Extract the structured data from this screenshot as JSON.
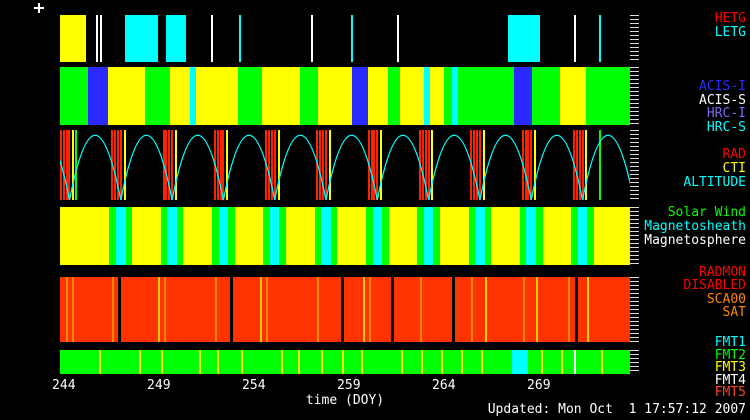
{
  "updated": "Updated: Mon Oct  1 17:57:12 2007",
  "colors": {
    "background": "#000000",
    "yellow": "#ffff00",
    "green": "#00ff00",
    "cyan": "#00ffff",
    "blue": "#2a2aff",
    "red": "#ff2200",
    "orange": "#ff8800",
    "white": "#ffffff"
  },
  "chart_data": {
    "type": "timeline",
    "xlabel": "time (DOY)",
    "x_range": [
      243.8,
      273.8
    ],
    "x_ticks": [
      {
        "day": 244,
        "label": "244"
      },
      {
        "day": 249,
        "label": "249"
      },
      {
        "day": 254,
        "label": "254"
      },
      {
        "day": 259,
        "label": "259"
      },
      {
        "day": 264,
        "label": "264"
      },
      {
        "day": 269,
        "label": "269"
      }
    ],
    "bands": [
      {
        "id": "grating",
        "bg": "#000000",
        "labels": [
          {
            "text": "HETG",
            "color": "#ff0000"
          },
          {
            "text": "LETG",
            "color": "#00ffff"
          }
        ],
        "segments": [
          {
            "s": 243.8,
            "e": 245.15,
            "c": "#ffff00"
          },
          {
            "s": 247.2,
            "e": 248.96,
            "c": "#00ffff"
          },
          {
            "s": 249.38,
            "e": 250.43,
            "c": "#00ffff"
          },
          {
            "s": 267.4,
            "e": 269.05,
            "c": "#00ffff"
          }
        ],
        "lines": [
          {
            "d": 245.75,
            "c": "#ffffff"
          },
          {
            "d": 245.97,
            "c": "#ffffff"
          },
          {
            "d": 251.8,
            "c": "#ffffff"
          },
          {
            "d": 253.27,
            "c": "#00ffff"
          },
          {
            "d": 257.06,
            "c": "#ffffff"
          },
          {
            "d": 259.17,
            "c": "#00ffff"
          },
          {
            "d": 261.59,
            "c": "#ffffff"
          },
          {
            "d": 270.9,
            "c": "#ffffff"
          },
          {
            "d": 272.2,
            "c": "#00ffff"
          }
        ]
      },
      {
        "id": "instruments",
        "bg": "#000000",
        "labels": [
          {
            "text": "ACIS-I",
            "color": "#2a2aff"
          },
          {
            "text": "ACIS-S",
            "color": "#ffffff"
          },
          {
            "text": "HRC-I",
            "color": "#7b68ee"
          },
          {
            "text": "HRC-S",
            "color": "#00ffff"
          }
        ],
        "segments": [
          {
            "s": 243.8,
            "e": 245.27,
            "c": "#00ff00"
          },
          {
            "s": 245.27,
            "e": 246.33,
            "c": "#2a2aff"
          },
          {
            "s": 246.33,
            "e": 248.27,
            "c": "#ffff00"
          },
          {
            "s": 248.27,
            "e": 249.59,
            "c": "#00ff00"
          },
          {
            "s": 249.59,
            "e": 250.64,
            "c": "#ffff00"
          },
          {
            "s": 250.64,
            "e": 250.96,
            "c": "#00ffff"
          },
          {
            "s": 250.96,
            "e": 253.17,
            "c": "#ffff00"
          },
          {
            "s": 253.17,
            "e": 254.43,
            "c": "#00ff00"
          },
          {
            "s": 254.43,
            "e": 256.43,
            "c": "#ffff00"
          },
          {
            "s": 256.43,
            "e": 257.38,
            "c": "#00ff00"
          },
          {
            "s": 257.38,
            "e": 259.17,
            "c": "#ffff00"
          },
          {
            "s": 259.17,
            "e": 260.01,
            "c": "#2a2aff"
          },
          {
            "s": 260.01,
            "e": 261.06,
            "c": "#ffff00"
          },
          {
            "s": 261.06,
            "e": 261.7,
            "c": "#00ff00"
          },
          {
            "s": 261.7,
            "e": 262.96,
            "c": "#ffff00"
          },
          {
            "s": 262.96,
            "e": 263.27,
            "c": "#00ffff"
          },
          {
            "s": 263.27,
            "e": 264.01,
            "c": "#ffff00"
          },
          {
            "s": 264.01,
            "e": 264.43,
            "c": "#00ff00"
          },
          {
            "s": 264.43,
            "e": 264.75,
            "c": "#00ffff"
          },
          {
            "s": 264.75,
            "e": 267.7,
            "c": "#00ff00"
          },
          {
            "s": 267.7,
            "e": 268.64,
            "c": "#2a2aff"
          },
          {
            "s": 268.64,
            "e": 270.1,
            "c": "#00ff00"
          },
          {
            "s": 270.1,
            "e": 271.5,
            "c": "#ffff00"
          },
          {
            "s": 271.5,
            "e": 273.8,
            "c": "#00ff00"
          }
        ],
        "lines": []
      },
      {
        "id": "orbit",
        "bg": "#000000",
        "labels": [
          {
            "text": "RAD",
            "color": "#ff0000"
          },
          {
            "text": "CTI",
            "color": "#ffff00"
          },
          {
            "text": "ALTITUDE",
            "color": "#00ffff"
          }
        ],
        "perigees": [
          244.3,
          247.0,
          249.7,
          252.4,
          255.1,
          257.8,
          260.5,
          263.2,
          265.9,
          268.6,
          271.3
        ],
        "segments": [],
        "lines": [
          {
            "d": 243.85,
            "c": "#ff2200"
          },
          {
            "d": 244.0,
            "c": "#ff2200"
          },
          {
            "d": 244.15,
            "c": "#ff2200"
          },
          {
            "d": 244.3,
            "c": "#ff2200"
          },
          {
            "d": 246.55,
            "c": "#ff2200"
          },
          {
            "d": 246.7,
            "c": "#ff2200"
          },
          {
            "d": 246.85,
            "c": "#ff2200"
          },
          {
            "d": 247.0,
            "c": "#ff2200"
          },
          {
            "d": 249.25,
            "c": "#ff2200"
          },
          {
            "d": 249.4,
            "c": "#ff2200"
          },
          {
            "d": 249.55,
            "c": "#ff2200"
          },
          {
            "d": 249.7,
            "c": "#ff2200"
          },
          {
            "d": 251.95,
            "c": "#ff2200"
          },
          {
            "d": 252.1,
            "c": "#ff2200"
          },
          {
            "d": 252.25,
            "c": "#ff2200"
          },
          {
            "d": 252.4,
            "c": "#ff2200"
          },
          {
            "d": 254.65,
            "c": "#ff2200"
          },
          {
            "d": 254.8,
            "c": "#ff2200"
          },
          {
            "d": 254.95,
            "c": "#ff2200"
          },
          {
            "d": 255.1,
            "c": "#ff2200"
          },
          {
            "d": 257.35,
            "c": "#ff2200"
          },
          {
            "d": 257.5,
            "c": "#ff2200"
          },
          {
            "d": 257.65,
            "c": "#ff2200"
          },
          {
            "d": 257.8,
            "c": "#ff2200"
          },
          {
            "d": 260.05,
            "c": "#ff2200"
          },
          {
            "d": 260.2,
            "c": "#ff2200"
          },
          {
            "d": 260.35,
            "c": "#ff2200"
          },
          {
            "d": 260.5,
            "c": "#ff2200"
          },
          {
            "d": 262.75,
            "c": "#ff2200"
          },
          {
            "d": 262.9,
            "c": "#ff2200"
          },
          {
            "d": 263.05,
            "c": "#ff2200"
          },
          {
            "d": 263.2,
            "c": "#ff2200"
          },
          {
            "d": 265.45,
            "c": "#ff2200"
          },
          {
            "d": 265.6,
            "c": "#ff2200"
          },
          {
            "d": 265.75,
            "c": "#ff2200"
          },
          {
            "d": 265.9,
            "c": "#ff2200"
          },
          {
            "d": 268.15,
            "c": "#ff2200"
          },
          {
            "d": 268.3,
            "c": "#ff2200"
          },
          {
            "d": 268.45,
            "c": "#ff2200"
          },
          {
            "d": 268.6,
            "c": "#ff2200"
          },
          {
            "d": 270.85,
            "c": "#ff2200"
          },
          {
            "d": 271.0,
            "c": "#ff2200"
          },
          {
            "d": 271.15,
            "c": "#ff2200"
          },
          {
            "d": 271.3,
            "c": "#ff2200"
          },
          {
            "d": 244.5,
            "c": "#ffff00"
          },
          {
            "d": 247.2,
            "c": "#ffff00"
          },
          {
            "d": 249.9,
            "c": "#ffff00"
          },
          {
            "d": 252.6,
            "c": "#ffff00"
          },
          {
            "d": 255.3,
            "c": "#ffff00"
          },
          {
            "d": 258.0,
            "c": "#ffff00"
          },
          {
            "d": 260.7,
            "c": "#ffff00"
          },
          {
            "d": 263.4,
            "c": "#ffff00"
          },
          {
            "d": 266.1,
            "c": "#ffff00"
          },
          {
            "d": 268.8,
            "c": "#ffff00"
          },
          {
            "d": 271.5,
            "c": "#ffff00"
          },
          {
            "d": 244.65,
            "c": "#00ff00"
          },
          {
            "d": 272.2,
            "c": "#00ff00"
          }
        ]
      },
      {
        "id": "regions",
        "bg": "#ffff00",
        "labels": [
          {
            "text": "Solar Wind",
            "color": "#00ff00"
          },
          {
            "text": "Magnetosheath",
            "color": "#00ffff"
          },
          {
            "text": "Magnetosphere",
            "color": "#ffffff"
          }
        ],
        "segments": [
          {
            "s": 246.4,
            "e": 246.75,
            "c": "#00ff00"
          },
          {
            "s": 246.75,
            "e": 247.25,
            "c": "#00ffff"
          },
          {
            "s": 247.25,
            "e": 247.6,
            "c": "#00ff00"
          },
          {
            "s": 249.1,
            "e": 249.45,
            "c": "#00ff00"
          },
          {
            "s": 249.45,
            "e": 249.95,
            "c": "#00ffff"
          },
          {
            "s": 249.95,
            "e": 250.3,
            "c": "#00ff00"
          },
          {
            "s": 251.8,
            "e": 252.15,
            "c": "#00ff00"
          },
          {
            "s": 252.15,
            "e": 252.65,
            "c": "#00ffff"
          },
          {
            "s": 252.65,
            "e": 253.0,
            "c": "#00ff00"
          },
          {
            "s": 254.5,
            "e": 254.85,
            "c": "#00ff00"
          },
          {
            "s": 254.85,
            "e": 255.35,
            "c": "#00ffff"
          },
          {
            "s": 255.35,
            "e": 255.7,
            "c": "#00ff00"
          },
          {
            "s": 257.2,
            "e": 257.55,
            "c": "#00ff00"
          },
          {
            "s": 257.55,
            "e": 258.05,
            "c": "#00ffff"
          },
          {
            "s": 258.05,
            "e": 258.4,
            "c": "#00ff00"
          },
          {
            "s": 259.9,
            "e": 260.25,
            "c": "#00ff00"
          },
          {
            "s": 260.25,
            "e": 260.75,
            "c": "#00ffff"
          },
          {
            "s": 260.75,
            "e": 261.1,
            "c": "#00ff00"
          },
          {
            "s": 262.6,
            "e": 262.95,
            "c": "#00ff00"
          },
          {
            "s": 262.95,
            "e": 263.45,
            "c": "#00ffff"
          },
          {
            "s": 263.45,
            "e": 263.8,
            "c": "#00ff00"
          },
          {
            "s": 265.3,
            "e": 265.65,
            "c": "#00ff00"
          },
          {
            "s": 265.65,
            "e": 266.15,
            "c": "#00ffff"
          },
          {
            "s": 266.15,
            "e": 266.5,
            "c": "#00ff00"
          },
          {
            "s": 268.0,
            "e": 268.35,
            "c": "#00ff00"
          },
          {
            "s": 268.35,
            "e": 268.85,
            "c": "#00ffff"
          },
          {
            "s": 268.85,
            "e": 269.2,
            "c": "#00ff00"
          },
          {
            "s": 270.7,
            "e": 271.05,
            "c": "#00ff00"
          },
          {
            "s": 271.05,
            "e": 271.55,
            "c": "#00ffff"
          },
          {
            "s": 271.55,
            "e": 271.9,
            "c": "#00ff00"
          }
        ],
        "lines": []
      },
      {
        "id": "radmon",
        "bg": "#ff3300",
        "labels": [
          {
            "text": "RADMON",
            "color": "#ff0000"
          },
          {
            "text": "DISABLED",
            "color": "#ff0000"
          },
          {
            "text": "SCA00",
            "color": "#ff8800"
          },
          {
            "text": "SAT",
            "color": "#ff8800"
          }
        ],
        "segments": [
          {
            "s": 246.85,
            "e": 247.01,
            "c": "#000000"
          },
          {
            "s": 252.75,
            "e": 252.91,
            "c": "#000000"
          },
          {
            "s": 258.59,
            "e": 258.75,
            "c": "#000000"
          },
          {
            "s": 261.22,
            "e": 261.38,
            "c": "#000000"
          },
          {
            "s": 264.43,
            "e": 264.59,
            "c": "#000000"
          },
          {
            "s": 270.9,
            "e": 271.06,
            "c": "#000000"
          }
        ],
        "lines": [
          {
            "d": 244.15,
            "c": "#ff8800"
          },
          {
            "d": 244.5,
            "c": "#ff8800"
          },
          {
            "d": 246.6,
            "c": "#ff8800"
          },
          {
            "d": 249.3,
            "c": "#ff8800"
          },
          {
            "d": 252.0,
            "c": "#ff8800"
          },
          {
            "d": 254.7,
            "c": "#ff8800"
          },
          {
            "d": 257.4,
            "c": "#ff8800"
          },
          {
            "d": 260.1,
            "c": "#ff8800"
          },
          {
            "d": 262.8,
            "c": "#ff8800"
          },
          {
            "d": 265.5,
            "c": "#ff8800"
          },
          {
            "d": 268.2,
            "c": "#ff8800"
          },
          {
            "d": 270.6,
            "c": "#ff8800"
          },
          {
            "d": 249.0,
            "c": "#ffcc00"
          },
          {
            "d": 254.4,
            "c": "#ffcc00"
          },
          {
            "d": 259.8,
            "c": "#ffcc00"
          },
          {
            "d": 266.2,
            "c": "#ffcc00"
          },
          {
            "d": 268.9,
            "c": "#ffcc00"
          },
          {
            "d": 271.6,
            "c": "#ffcc00"
          }
        ]
      },
      {
        "id": "fmt",
        "bg": "#00ff00",
        "labels": [
          {
            "text": "FMT1",
            "color": "#00ffff"
          },
          {
            "text": "FMT2",
            "color": "#00ff00"
          },
          {
            "text": "FMT3",
            "color": "#ffff00"
          },
          {
            "text": "FMT4",
            "color": "#ffffff"
          },
          {
            "text": "FMT5",
            "color": "#ff4422"
          }
        ],
        "segments": [
          {
            "s": 267.6,
            "e": 268.45,
            "c": "#00ffff"
          }
        ],
        "lines": [
          {
            "d": 245.9,
            "c": "#ffff00"
          },
          {
            "d": 248.0,
            "c": "#ffff00"
          },
          {
            "d": 249.17,
            "c": "#ffff00"
          },
          {
            "d": 251.17,
            "c": "#ffff00"
          },
          {
            "d": 252.1,
            "c": "#ffff00"
          },
          {
            "d": 253.4,
            "c": "#ffff00"
          },
          {
            "d": 255.5,
            "c": "#ffff00"
          },
          {
            "d": 256.4,
            "c": "#ffff00"
          },
          {
            "d": 257.6,
            "c": "#ffff00"
          },
          {
            "d": 258.7,
            "c": "#ffff00"
          },
          {
            "d": 259.7,
            "c": "#ffff00"
          },
          {
            "d": 261.8,
            "c": "#ffff00"
          },
          {
            "d": 262.85,
            "c": "#ffff00"
          },
          {
            "d": 263.9,
            "c": "#ffff00"
          },
          {
            "d": 264.95,
            "c": "#ffff00"
          },
          {
            "d": 266.0,
            "c": "#ffff00"
          },
          {
            "d": 269.16,
            "c": "#ffff00"
          },
          {
            "d": 270.2,
            "c": "#ffff00"
          },
          {
            "d": 272.3,
            "c": "#ffff00"
          },
          {
            "d": 270.9,
            "c": "#ffffff"
          }
        ]
      }
    ]
  }
}
